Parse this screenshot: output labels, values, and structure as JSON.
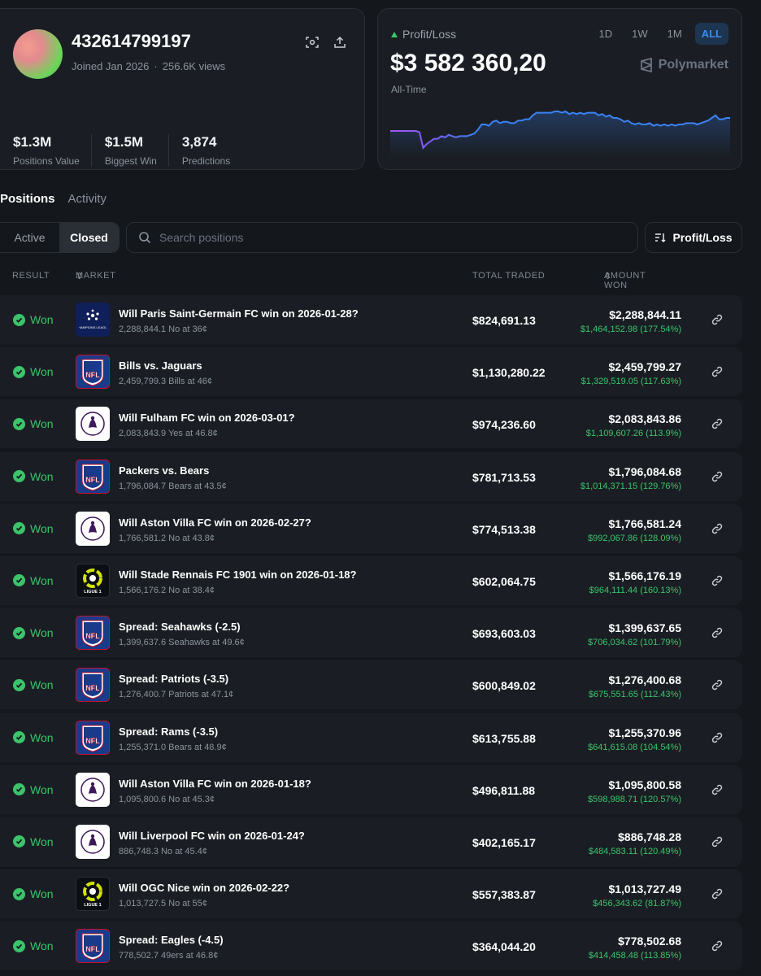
{
  "profile": {
    "username": "432614799197",
    "joined": "Joined Jan 2026",
    "views": "256.6K views",
    "stats": [
      {
        "value": "$1.3M",
        "label": "Positions Value"
      },
      {
        "value": "$1.5M",
        "label": "Biggest Win"
      },
      {
        "value": "3,874",
        "label": "Predictions"
      }
    ]
  },
  "pnl": {
    "label": "Profit/Loss",
    "value": "$3 582 360,20",
    "period": "All-Time",
    "brand": "Polymarket",
    "ranges": [
      "1D",
      "1W",
      "1M",
      "ALL"
    ],
    "active_range": "ALL",
    "series": [
      26,
      26,
      26,
      26,
      26,
      26,
      26,
      26,
      25,
      13,
      16,
      18,
      20,
      20,
      22,
      21,
      23,
      22,
      21,
      22,
      22,
      22,
      23,
      24,
      27,
      31,
      31,
      30,
      33,
      34,
      32,
      33,
      33,
      32,
      32,
      34,
      34,
      35,
      35,
      38,
      40,
      40,
      40,
      40,
      40,
      41,
      41,
      40,
      41,
      39,
      40,
      39,
      40,
      39,
      40,
      40,
      40,
      38,
      39,
      37,
      38,
      36,
      36,
      35,
      33,
      34,
      32,
      31,
      32,
      31,
      31,
      32,
      30,
      31,
      30,
      31,
      30,
      31,
      30,
      31,
      31,
      32,
      32,
      32,
      31,
      32,
      33,
      34,
      36,
      38,
      35,
      35,
      36,
      36
    ],
    "line_color": "#3b82f6"
  },
  "tabs": [
    {
      "label": "Positions",
      "active": true
    },
    {
      "label": "Activity",
      "active": false
    }
  ],
  "filters": {
    "active": "Active",
    "closed": "Closed"
  },
  "search": {
    "placeholder": "Search positions"
  },
  "sort": {
    "label": "Profit/Loss"
  },
  "table": {
    "headers": {
      "result": "RESULT",
      "market": "MARKET",
      "traded": "TOTAL TRADED",
      "won": "AMOUNT WON"
    },
    "rows": [
      {
        "result": "Won",
        "logo": "ucl",
        "logo_text": "CHAMPIONS LEAGUE",
        "title": "Will Paris Saint-Germain FC win on 2026-01-28?",
        "sub": "2,288,844.1 No at 36¢",
        "traded": "$824,691.13",
        "won": "$2,288,844.11",
        "won_sub": "$1,464,152.98 (177.54%)"
      },
      {
        "result": "Won",
        "logo": "nfl",
        "logo_text": "NFL",
        "title": "Bills vs. Jaguars",
        "sub": "2,459,799.3 Bills at 46¢",
        "traded": "$1,130,280.22",
        "won": "$2,459,799.27",
        "won_sub": "$1,329,519.05 (117.63%)"
      },
      {
        "result": "Won",
        "logo": "pl",
        "logo_text": "",
        "title": "Will Fulham FC win on 2026-03-01?",
        "sub": "2,083,843.9 Yes at 46.8¢",
        "traded": "$974,236.60",
        "won": "$2,083,843.86",
        "won_sub": "$1,109,607.26 (113.9%)"
      },
      {
        "result": "Won",
        "logo": "nfl",
        "logo_text": "NFL",
        "title": "Packers vs. Bears",
        "sub": "1,796,084.7 Bears at 43.5¢",
        "traded": "$781,713.53",
        "won": "$1,796,084.68",
        "won_sub": "$1,014,371.15 (129.76%)"
      },
      {
        "result": "Won",
        "logo": "pl",
        "logo_text": "",
        "title": "Will Aston Villa FC win on 2026-02-27?",
        "sub": "1,766,581.2 No at 43.8¢",
        "traded": "$774,513.38",
        "won": "$1,766,581.24",
        "won_sub": "$992,067.86 (128.09%)"
      },
      {
        "result": "Won",
        "logo": "l1",
        "logo_text": "LIGUE 1",
        "title": "Will Stade Rennais FC 1901 win on 2026-01-18?",
        "sub": "1,566,176.2 No at 38.4¢",
        "traded": "$602,064.75",
        "won": "$1,566,176.19",
        "won_sub": "$964,111.44 (160.13%)"
      },
      {
        "result": "Won",
        "logo": "nfl",
        "logo_text": "NFL",
        "title": "Spread: Seahawks (-2.5)",
        "sub": "1,399,637.6 Seahawks at 49.6¢",
        "traded": "$693,603.03",
        "won": "$1,399,637.65",
        "won_sub": "$706,034.62 (101.79%)"
      },
      {
        "result": "Won",
        "logo": "nfl",
        "logo_text": "NFL",
        "title": "Spread: Patriots (-3.5)",
        "sub": "1,276,400.7 Patriots at 47.1¢",
        "traded": "$600,849.02",
        "won": "$1,276,400.68",
        "won_sub": "$675,551.65 (112.43%)"
      },
      {
        "result": "Won",
        "logo": "nfl",
        "logo_text": "NFL",
        "title": "Spread: Rams (-3.5)",
        "sub": "1,255,371.0 Bears at 48.9¢",
        "traded": "$613,755.88",
        "won": "$1,255,370.96",
        "won_sub": "$641,615.08 (104.54%)"
      },
      {
        "result": "Won",
        "logo": "pl",
        "logo_text": "",
        "title": "Will Aston Villa FC win on 2026-01-18?",
        "sub": "1,095,800.6 No at 45.3¢",
        "traded": "$496,811.88",
        "won": "$1,095,800.58",
        "won_sub": "$598,988.71 (120.57%)"
      },
      {
        "result": "Won",
        "logo": "pl",
        "logo_text": "",
        "title": "Will Liverpool FC win on 2026-01-24?",
        "sub": "886,748.3 No at 45.4¢",
        "traded": "$402,165.17",
        "won": "$886,748.28",
        "won_sub": "$484,583.11 (120.49%)"
      },
      {
        "result": "Won",
        "logo": "l1",
        "logo_text": "LIGUE 1",
        "title": "Will OGC Nice win on 2026-02-22?",
        "sub": "1,013,727.5 No at 55¢",
        "traded": "$557,383.87",
        "won": "$1,013,727.49",
        "won_sub": "$456,343.62 (81.87%)"
      },
      {
        "result": "Won",
        "logo": "nfl",
        "logo_text": "NFL",
        "title": "Spread: Eagles (-4.5)",
        "sub": "778,502.7 49ers at 46.8¢",
        "traded": "$364,044.20",
        "won": "$778,502.68",
        "won_sub": "$414,458.48 (113.85%)"
      }
    ]
  },
  "icons": {
    "scan": "scan-icon",
    "share": "share-icon",
    "search": "search-icon",
    "sort": "sort-icon",
    "link": "link-icon",
    "check": "check-icon",
    "polymarket": "polymarket-logo-icon"
  }
}
